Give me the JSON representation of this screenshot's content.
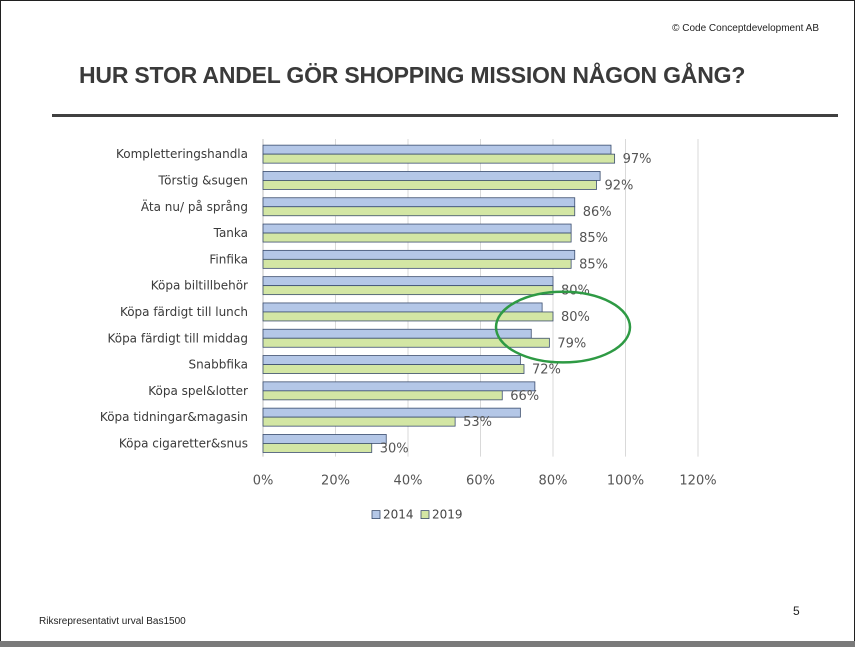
{
  "header": {
    "copyright": "© Code Conceptdevelopment AB",
    "title": "HUR STOR ANDEL GÖR SHOPPING MISSION NÅGON GÅNG?"
  },
  "footer": {
    "note": "Riksrepresentativt urval  Bas1500",
    "page": "5"
  },
  "chart_data": {
    "type": "bar",
    "orientation": "horizontal",
    "categories": [
      "Kompletteringshandla",
      "Törstig &sugen",
      "Äta nu/ på språng",
      "Tanka",
      "Finfika",
      "Köpa biltillbehör",
      "Köpa färdigt till lunch",
      "Köpa färdigt till middag",
      "Snabbfika",
      "Köpa spel&lotter",
      "Köpa tidningar&magasin",
      "Köpa cigaretter&snus"
    ],
    "series": [
      {
        "name": "2014",
        "color": "#b4c7e7",
        "values": [
          96,
          93,
          86,
          85,
          86,
          80,
          77,
          74,
          71,
          75,
          71,
          34
        ]
      },
      {
        "name": "2019",
        "color": "#d3e6a4",
        "values": [
          97,
          92,
          86,
          85,
          85,
          80,
          80,
          79,
          72,
          66,
          53,
          30
        ]
      }
    ],
    "value_labels": [
      "97%",
      "92%",
      "86%",
      "85%",
      "85%",
      "80%",
      "80%",
      "79%",
      "72%",
      "66%",
      "53%",
      "30%"
    ],
    "ticks": [
      "0%",
      "20%",
      "40%",
      "60%",
      "80%",
      "100%",
      "120%"
    ],
    "xlim": [
      0,
      120
    ],
    "grid": true,
    "legend_position": "bottom",
    "highlight": {
      "shape": "ellipse",
      "color": "#2e9a44",
      "categories": [
        "Köpa färdigt till lunch",
        "Köpa färdigt till middag"
      ]
    }
  }
}
